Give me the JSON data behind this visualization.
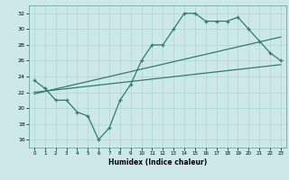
{
  "xlabel": "Humidex (Indice chaleur)",
  "bg_color": "#cce8e8",
  "line_color": "#2e7d6e",
  "xlim": [
    -0.5,
    23.5
  ],
  "ylim": [
    15,
    33
  ],
  "yticks": [
    16,
    18,
    20,
    22,
    24,
    26,
    28,
    30,
    32
  ],
  "xticks": [
    0,
    1,
    2,
    3,
    4,
    5,
    6,
    7,
    8,
    9,
    10,
    11,
    12,
    13,
    14,
    15,
    16,
    17,
    18,
    19,
    20,
    21,
    22,
    23
  ],
  "main_x": [
    0,
    1,
    2,
    3,
    4,
    5,
    6,
    7,
    8,
    9,
    10,
    11,
    12,
    13,
    14,
    15,
    16,
    17,
    18,
    19,
    20,
    21,
    22,
    23
  ],
  "main_y": [
    23.5,
    22.5,
    21.0,
    21.0,
    19.5,
    19.0,
    16.0,
    17.5,
    21.0,
    23.0,
    26.0,
    28.0,
    28.0,
    30.0,
    32.0,
    32.0,
    31.0,
    31.0,
    31.0,
    31.5,
    30.0,
    28.5,
    27.0,
    26.0
  ],
  "line2_x": [
    0,
    23
  ],
  "line2_y": [
    22.0,
    25.5
  ],
  "line3_x": [
    0,
    23
  ],
  "line3_y": [
    21.8,
    29.0
  ],
  "grid_color": "#afd8d0",
  "spine_color": "#5a9e90"
}
